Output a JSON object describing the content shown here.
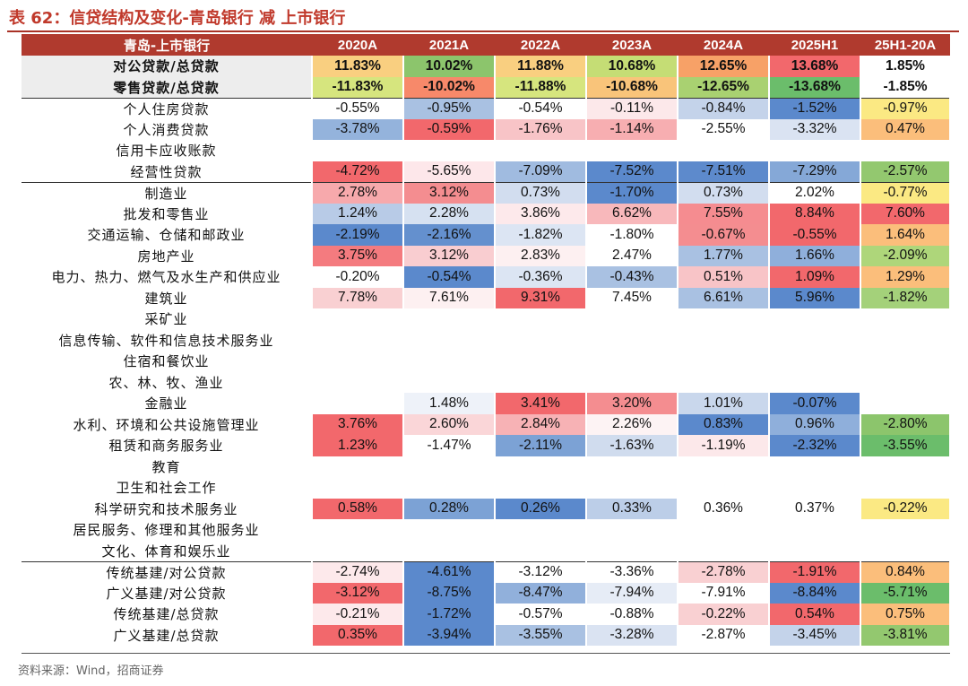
{
  "title": "表 62：信贷结构及变化-青岛银行 减 上市银行",
  "source": "资料来源：Wind，招商证券",
  "header": [
    "青岛-上市银行",
    "2020A",
    "2021A",
    "2022A",
    "2023A",
    "2024A",
    "2025H1",
    "25H1-20A"
  ],
  "rows": [
    {
      "label": "对公贷款/总贷款",
      "bold": true,
      "cells": [
        {
          "v": "11.83%",
          "c": "#f9cf80"
        },
        {
          "v": "10.02%",
          "c": "#8cc56c"
        },
        {
          "v": "11.88%",
          "c": "#f9cf80"
        },
        {
          "v": "10.68%",
          "c": "#c5dd75"
        },
        {
          "v": "12.65%",
          "c": "#f7a167"
        },
        {
          "v": "13.68%",
          "c": "#f2686c"
        },
        {
          "v": "1.85%",
          "c": "#ffffff"
        }
      ]
    },
    {
      "label": "零售贷款/总贷款",
      "bold": true,
      "cells": [
        {
          "v": "-11.83%",
          "c": "#d6e57e"
        },
        {
          "v": "-10.02%",
          "c": "#f7896a"
        },
        {
          "v": "-11.88%",
          "c": "#d6e57e"
        },
        {
          "v": "-10.68%",
          "c": "#f9c47a"
        },
        {
          "v": "-12.65%",
          "c": "#a9d171"
        },
        {
          "v": "-13.68%",
          "c": "#6bbd6b"
        },
        {
          "v": "-1.85%",
          "c": "#ffffff"
        }
      ]
    },
    {
      "label": "个人住房贷款",
      "sep": true,
      "cells": [
        {
          "v": "-0.55%",
          "c": "#ffffff"
        },
        {
          "v": "-0.95%",
          "c": "#a9c1e2"
        },
        {
          "v": "-0.54%",
          "c": "#ffffff"
        },
        {
          "v": "-0.11%",
          "c": "#fce8ea"
        },
        {
          "v": "-0.84%",
          "c": "#c4d3ea"
        },
        {
          "v": "-1.52%",
          "c": "#5b89cc"
        },
        {
          "v": "-0.97%",
          "c": "#fbe983"
        }
      ]
    },
    {
      "label": "个人消费贷款",
      "cells": [
        {
          "v": "-3.78%",
          "c": "#94b3dc"
        },
        {
          "v": "-0.59%",
          "c": "#f2686c"
        },
        {
          "v": "-1.76%",
          "c": "#f8c4c7"
        },
        {
          "v": "-1.14%",
          "c": "#f7aeb1"
        },
        {
          "v": "-2.55%",
          "c": "#ffffff"
        },
        {
          "v": "-3.32%",
          "c": "#dae3f2"
        },
        {
          "v": "0.47%",
          "c": "#fbbe7b"
        }
      ]
    },
    {
      "label": "信用卡应收账款",
      "cells": [
        {
          "v": "",
          "c": "#ffffff"
        },
        {
          "v": "",
          "c": "#ffffff"
        },
        {
          "v": "",
          "c": "#ffffff"
        },
        {
          "v": "",
          "c": "#ffffff"
        },
        {
          "v": "",
          "c": "#ffffff"
        },
        {
          "v": "",
          "c": "#ffffff"
        },
        {
          "v": "",
          "c": "#ffffff"
        }
      ]
    },
    {
      "label": "经营性贷款",
      "cells": [
        {
          "v": "-4.72%",
          "c": "#f2686c"
        },
        {
          "v": "-5.65%",
          "c": "#fde7ea"
        },
        {
          "v": "-7.09%",
          "c": "#a0bbe0"
        },
        {
          "v": "-7.52%",
          "c": "#5b89cc"
        },
        {
          "v": "-7.51%",
          "c": "#5d8acc"
        },
        {
          "v": "-7.29%",
          "c": "#85a8d7"
        },
        {
          "v": "-2.57%",
          "c": "#93c86f"
        }
      ]
    },
    {
      "label": "制造业",
      "sep": true,
      "cells": [
        {
          "v": "2.78%",
          "c": "#f7a9ac"
        },
        {
          "v": "3.12%",
          "c": "#f48d90"
        },
        {
          "v": "0.73%",
          "c": "#d2ddef"
        },
        {
          "v": "-1.70%",
          "c": "#5b89cc"
        },
        {
          "v": "0.73%",
          "c": "#d2ddef"
        },
        {
          "v": "2.02%",
          "c": "#ffffff"
        },
        {
          "v": "-0.77%",
          "c": "#fbe983"
        }
      ]
    },
    {
      "label": "批发和零售业",
      "cells": [
        {
          "v": "1.24%",
          "c": "#b8cbe7"
        },
        {
          "v": "2.28%",
          "c": "#d6e1f1"
        },
        {
          "v": "3.86%",
          "c": "#fde9eb"
        },
        {
          "v": "6.62%",
          "c": "#f8b8bb"
        },
        {
          "v": "7.55%",
          "c": "#f58c90"
        },
        {
          "v": "8.84%",
          "c": "#f2686c"
        },
        {
          "v": "7.60%",
          "c": "#f2686c"
        }
      ]
    },
    {
      "label": "交通运输、仓储和邮政业",
      "cells": [
        {
          "v": "-2.19%",
          "c": "#5b89cc"
        },
        {
          "v": "-2.16%",
          "c": "#6490ce"
        },
        {
          "v": "-1.82%",
          "c": "#dce5f3"
        },
        {
          "v": "-1.80%",
          "c": "#ffffff"
        },
        {
          "v": "-0.67%",
          "c": "#f48d90"
        },
        {
          "v": "-0.55%",
          "c": "#f2686c"
        },
        {
          "v": "1.64%",
          "c": "#fbbe7b"
        }
      ]
    },
    {
      "label": "房地产业",
      "cells": [
        {
          "v": "3.75%",
          "c": "#f47b7f"
        },
        {
          "v": "3.12%",
          "c": "#f9cdd0"
        },
        {
          "v": "2.83%",
          "c": "#fdf0f1"
        },
        {
          "v": "2.47%",
          "c": "#ffffff"
        },
        {
          "v": "1.77%",
          "c": "#a9c1e2"
        },
        {
          "v": "1.66%",
          "c": "#8fafdb"
        },
        {
          "v": "-2.09%",
          "c": "#aed67a"
        }
      ]
    },
    {
      "label": "电力、热力、燃气及水生产和供应业",
      "cells": [
        {
          "v": "-0.20%",
          "c": "#ffffff"
        },
        {
          "v": "-0.54%",
          "c": "#5b89cc"
        },
        {
          "v": "-0.36%",
          "c": "#dce5f3"
        },
        {
          "v": "-0.43%",
          "c": "#a9c1e2"
        },
        {
          "v": "0.51%",
          "c": "#f8c4c7"
        },
        {
          "v": "1.09%",
          "c": "#f2686c"
        },
        {
          "v": "1.29%",
          "c": "#fbbe7b"
        }
      ]
    },
    {
      "label": "建筑业",
      "cells": [
        {
          "v": "7.78%",
          "c": "#f9d0d2"
        },
        {
          "v": "7.61%",
          "c": "#fdf0f1"
        },
        {
          "v": "9.31%",
          "c": "#f2686c"
        },
        {
          "v": "7.45%",
          "c": "#ffffff"
        },
        {
          "v": "6.61%",
          "c": "#a9c1e2"
        },
        {
          "v": "5.96%",
          "c": "#5b89cc"
        },
        {
          "v": "-1.82%",
          "c": "#a4d17a"
        }
      ]
    },
    {
      "label": "采矿业",
      "cells": [
        {
          "v": "",
          "c": "#ffffff"
        },
        {
          "v": "",
          "c": "#ffffff"
        },
        {
          "v": "",
          "c": "#ffffff"
        },
        {
          "v": "",
          "c": "#ffffff"
        },
        {
          "v": "",
          "c": "#ffffff"
        },
        {
          "v": "",
          "c": "#ffffff"
        },
        {
          "v": "",
          "c": "#ffffff"
        }
      ]
    },
    {
      "label": "信息传输、软件和信息技术服务业",
      "cells": [
        {
          "v": "",
          "c": "#ffffff"
        },
        {
          "v": "",
          "c": "#ffffff"
        },
        {
          "v": "",
          "c": "#ffffff"
        },
        {
          "v": "",
          "c": "#ffffff"
        },
        {
          "v": "",
          "c": "#ffffff"
        },
        {
          "v": "",
          "c": "#ffffff"
        },
        {
          "v": "",
          "c": "#ffffff"
        }
      ]
    },
    {
      "label": "住宿和餐饮业",
      "cells": [
        {
          "v": "",
          "c": "#ffffff"
        },
        {
          "v": "",
          "c": "#ffffff"
        },
        {
          "v": "",
          "c": "#ffffff"
        },
        {
          "v": "",
          "c": "#ffffff"
        },
        {
          "v": "",
          "c": "#ffffff"
        },
        {
          "v": "",
          "c": "#ffffff"
        },
        {
          "v": "",
          "c": "#ffffff"
        }
      ]
    },
    {
      "label": "农、林、牧、渔业",
      "cells": [
        {
          "v": "",
          "c": "#ffffff"
        },
        {
          "v": "",
          "c": "#ffffff"
        },
        {
          "v": "",
          "c": "#ffffff"
        },
        {
          "v": "",
          "c": "#ffffff"
        },
        {
          "v": "",
          "c": "#ffffff"
        },
        {
          "v": "",
          "c": "#ffffff"
        },
        {
          "v": "",
          "c": "#ffffff"
        }
      ]
    },
    {
      "label": "金融业",
      "cells": [
        {
          "v": "",
          "c": "#ffffff"
        },
        {
          "v": "1.48%",
          "c": "#eef2f9"
        },
        {
          "v": "3.41%",
          "c": "#f2686c"
        },
        {
          "v": "3.20%",
          "c": "#f48d90"
        },
        {
          "v": "1.01%",
          "c": "#c9d7ec"
        },
        {
          "v": "-0.07%",
          "c": "#5b89cc"
        },
        {
          "v": "",
          "c": "#ffffff"
        }
      ]
    },
    {
      "label": "水利、环境和公共设施管理业",
      "cells": [
        {
          "v": "3.76%",
          "c": "#f2686c"
        },
        {
          "v": "2.60%",
          "c": "#fad6d8"
        },
        {
          "v": "2.84%",
          "c": "#f7b2b5"
        },
        {
          "v": "2.26%",
          "c": "#fdf3f4"
        },
        {
          "v": "0.83%",
          "c": "#5b89cc"
        },
        {
          "v": "0.96%",
          "c": "#8fafdb"
        },
        {
          "v": "-2.80%",
          "c": "#8cc56c"
        }
      ]
    },
    {
      "label": "租赁和商务服务业",
      "cells": [
        {
          "v": "1.23%",
          "c": "#f2686c"
        },
        {
          "v": "-1.47%",
          "c": "#ffffff"
        },
        {
          "v": "-2.11%",
          "c": "#7ca2d5"
        },
        {
          "v": "-1.63%",
          "c": "#d0dcee"
        },
        {
          "v": "-1.19%",
          "c": "#fce8ea"
        },
        {
          "v": "-2.32%",
          "c": "#5b89cc"
        },
        {
          "v": "-3.55%",
          "c": "#6bbd6b"
        }
      ]
    },
    {
      "label": "教育",
      "cells": [
        {
          "v": "",
          "c": "#ffffff"
        },
        {
          "v": "",
          "c": "#ffffff"
        },
        {
          "v": "",
          "c": "#ffffff"
        },
        {
          "v": "",
          "c": "#ffffff"
        },
        {
          "v": "",
          "c": "#ffffff"
        },
        {
          "v": "",
          "c": "#ffffff"
        },
        {
          "v": "",
          "c": "#ffffff"
        }
      ]
    },
    {
      "label": "卫生和社会工作",
      "cells": [
        {
          "v": "",
          "c": "#ffffff"
        },
        {
          "v": "",
          "c": "#ffffff"
        },
        {
          "v": "",
          "c": "#ffffff"
        },
        {
          "v": "",
          "c": "#ffffff"
        },
        {
          "v": "",
          "c": "#ffffff"
        },
        {
          "v": "",
          "c": "#ffffff"
        },
        {
          "v": "",
          "c": "#ffffff"
        }
      ]
    },
    {
      "label": "科学研究和技术服务业",
      "cells": [
        {
          "v": "0.58%",
          "c": "#f2686c"
        },
        {
          "v": "0.28%",
          "c": "#7ca2d5"
        },
        {
          "v": "0.26%",
          "c": "#5b89cc"
        },
        {
          "v": "0.33%",
          "c": "#bccee8"
        },
        {
          "v": "0.36%",
          "c": "#ffffff"
        },
        {
          "v": "0.37%",
          "c": "#ffffff"
        },
        {
          "v": "-0.22%",
          "c": "#fbe983"
        }
      ]
    },
    {
      "label": "居民服务、修理和其他服务业",
      "cells": [
        {
          "v": "",
          "c": "#ffffff"
        },
        {
          "v": "",
          "c": "#ffffff"
        },
        {
          "v": "",
          "c": "#ffffff"
        },
        {
          "v": "",
          "c": "#ffffff"
        },
        {
          "v": "",
          "c": "#ffffff"
        },
        {
          "v": "",
          "c": "#ffffff"
        },
        {
          "v": "",
          "c": "#ffffff"
        }
      ]
    },
    {
      "label": "文化、体育和娱乐业",
      "cells": [
        {
          "v": "",
          "c": "#ffffff"
        },
        {
          "v": "",
          "c": "#ffffff"
        },
        {
          "v": "",
          "c": "#ffffff"
        },
        {
          "v": "",
          "c": "#ffffff"
        },
        {
          "v": "",
          "c": "#ffffff"
        },
        {
          "v": "",
          "c": "#ffffff"
        },
        {
          "v": "",
          "c": "#ffffff"
        }
      ]
    },
    {
      "label": "传统基建/对公贷款",
      "sep": true,
      "cells": [
        {
          "v": "-2.74%",
          "c": "#fde9eb"
        },
        {
          "v": "-4.61%",
          "c": "#5b89cc"
        },
        {
          "v": "-3.12%",
          "c": "#ffffff"
        },
        {
          "v": "-3.36%",
          "c": "#ffffff"
        },
        {
          "v": "-2.78%",
          "c": "#f9d0d2"
        },
        {
          "v": "-1.91%",
          "c": "#f2686c"
        },
        {
          "v": "0.84%",
          "c": "#fbbe7b"
        }
      ]
    },
    {
      "label": "广义基建/对公贷款",
      "cells": [
        {
          "v": "-3.12%",
          "c": "#f2686c"
        },
        {
          "v": "-8.75%",
          "c": "#5b89cc"
        },
        {
          "v": "-8.47%",
          "c": "#91b0db"
        },
        {
          "v": "-7.94%",
          "c": "#e6ecf6"
        },
        {
          "v": "-7.91%",
          "c": "#ffffff"
        },
        {
          "v": "-8.84%",
          "c": "#5b89cc"
        },
        {
          "v": "-5.71%",
          "c": "#6bbd6b"
        }
      ]
    },
    {
      "label": "传统基建/总贷款",
      "cells": [
        {
          "v": "-0.21%",
          "c": "#fde9eb"
        },
        {
          "v": "-1.72%",
          "c": "#5b89cc"
        },
        {
          "v": "-0.57%",
          "c": "#ffffff"
        },
        {
          "v": "-0.88%",
          "c": "#ffffff"
        },
        {
          "v": "-0.22%",
          "c": "#f9d0d2"
        },
        {
          "v": "0.54%",
          "c": "#f2686c"
        },
        {
          "v": "0.75%",
          "c": "#fbbe7b"
        }
      ]
    },
    {
      "label": "广义基建/总贷款",
      "cells": [
        {
          "v": "0.35%",
          "c": "#f2686c"
        },
        {
          "v": "-3.94%",
          "c": "#5b89cc"
        },
        {
          "v": "-3.55%",
          "c": "#a9c1e2"
        },
        {
          "v": "-3.28%",
          "c": "#dae3f2"
        },
        {
          "v": "-2.87%",
          "c": "#ffffff"
        },
        {
          "v": "-3.45%",
          "c": "#c4d3ea"
        },
        {
          "v": "-3.81%",
          "c": "#93c86f"
        }
      ]
    }
  ]
}
